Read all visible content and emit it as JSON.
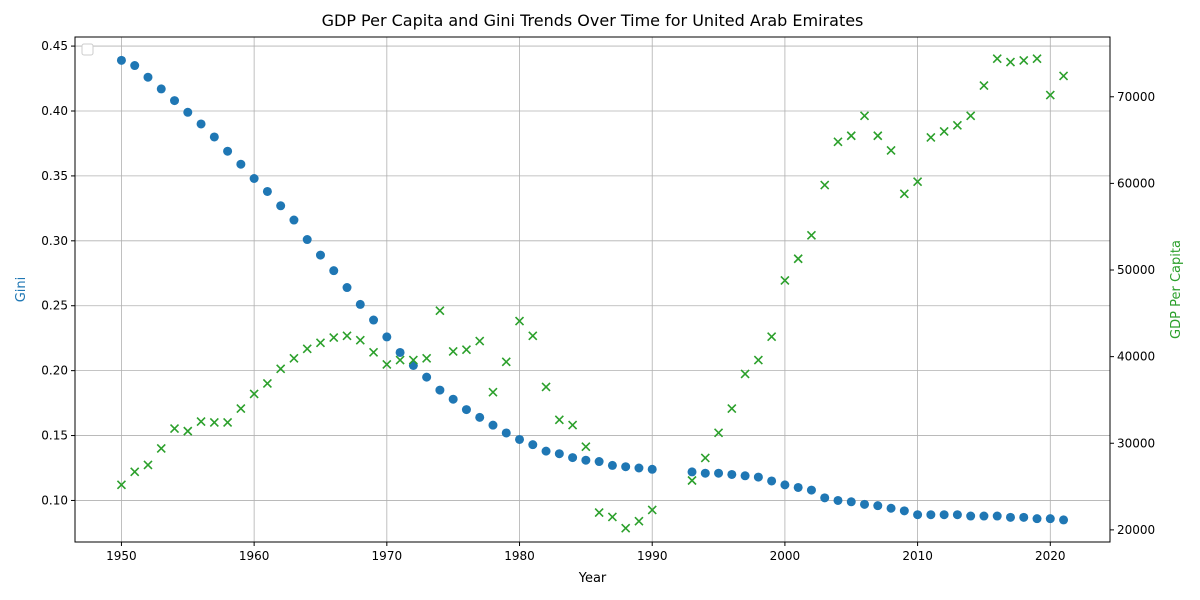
{
  "chart_data": {
    "type": "scatter",
    "title": "GDP Per Capita and Gini Trends Over Time for United Arab Emirates",
    "xlabel": "Year",
    "ylabel_left": "Gini",
    "ylabel_right": "GDP Per Capita",
    "xlim": [
      1946.5,
      2024.5
    ],
    "ylim_left": [
      0.068,
      0.457
    ],
    "ylim_right": [
      18600,
      76900
    ],
    "x_ticks": [
      1950,
      1960,
      1970,
      1980,
      1990,
      2000,
      2010,
      2020
    ],
    "y_left_ticks": [
      0.1,
      0.15,
      0.2,
      0.25,
      0.3,
      0.35,
      0.4,
      0.45
    ],
    "y_left_tick_labels": [
      "0.10",
      "0.15",
      "0.20",
      "0.25",
      "0.30",
      "0.35",
      "0.40",
      "0.45"
    ],
    "y_right_ticks": [
      20000,
      30000,
      40000,
      50000,
      60000,
      70000
    ],
    "grid": true,
    "legend": "top-left, empty",
    "colors": {
      "gini": "#1f77b4",
      "gdp": "#2ca02c",
      "left_label": "#1f77b4",
      "right_label": "#2ca02c"
    },
    "series": [
      {
        "marker": "circle",
        "axis": "left",
        "x": [
          1950,
          1951,
          1952,
          1953,
          1954,
          1955,
          1956,
          1957,
          1958,
          1959,
          1960,
          1961,
          1962,
          1963,
          1964,
          1965,
          1966,
          1967,
          1968,
          1969,
          1970,
          1971,
          1972,
          1973,
          1974,
          1975,
          1976,
          1977,
          1978,
          1979,
          1980,
          1981,
          1982,
          1983,
          1984,
          1985,
          1986,
          1987,
          1988,
          1989,
          1990,
          1993,
          1994,
          1995,
          1996,
          1997,
          1998,
          1999,
          2000,
          2001,
          2002,
          2003,
          2004,
          2005,
          2006,
          2007,
          2008,
          2009,
          2010,
          2011,
          2012,
          2013,
          2014,
          2015,
          2016,
          2017,
          2018,
          2019,
          2020,
          2021
        ],
        "values": [
          0.439,
          0.435,
          0.426,
          0.417,
          0.408,
          0.399,
          0.39,
          0.38,
          0.369,
          0.359,
          0.348,
          0.338,
          0.327,
          0.316,
          0.301,
          0.289,
          0.277,
          0.264,
          0.251,
          0.239,
          0.226,
          0.214,
          0.204,
          0.195,
          0.185,
          0.178,
          0.17,
          0.164,
          0.158,
          0.152,
          0.147,
          0.143,
          0.138,
          0.136,
          0.133,
          0.131,
          0.13,
          0.127,
          0.126,
          0.125,
          0.124,
          0.122,
          0.121,
          0.121,
          0.12,
          0.119,
          0.118,
          0.115,
          0.112,
          0.11,
          0.108,
          0.102,
          0.1,
          0.099,
          0.097,
          0.096,
          0.094,
          0.092,
          0.089,
          0.089,
          0.089,
          0.089,
          0.088,
          0.088,
          0.088,
          0.087,
          0.087,
          0.086,
          0.086,
          0.085
        ]
      },
      {
        "marker": "x",
        "axis": "right",
        "x": [
          1950,
          1951,
          1952,
          1953,
          1954,
          1955,
          1956,
          1957,
          1958,
          1959,
          1960,
          1961,
          1962,
          1963,
          1964,
          1965,
          1966,
          1967,
          1968,
          1969,
          1970,
          1971,
          1972,
          1973,
          1974,
          1975,
          1976,
          1977,
          1978,
          1979,
          1980,
          1981,
          1982,
          1983,
          1984,
          1985,
          1986,
          1987,
          1988,
          1989,
          1990,
          1993,
          1994,
          1995,
          1996,
          1997,
          1998,
          1999,
          2000,
          2001,
          2002,
          2003,
          2004,
          2005,
          2006,
          2007,
          2008,
          2009,
          2010,
          2011,
          2012,
          2013,
          2014,
          2015,
          2016,
          2017,
          2018,
          2019,
          2020,
          2021
        ],
        "values": [
          25200,
          26700,
          27500,
          29400,
          31700,
          31400,
          32500,
          32400,
          32400,
          34000,
          35700,
          36900,
          38600,
          39800,
          40900,
          41600,
          42200,
          42400,
          41900,
          40500,
          39100,
          39600,
          39600,
          39800,
          45300,
          40600,
          40800,
          41800,
          35900,
          39400,
          44100,
          42400,
          36500,
          32700,
          32100,
          29600,
          22000,
          21500,
          20200,
          21000,
          22300,
          25700,
          28300,
          31200,
          34000,
          38000,
          39600,
          42300,
          48800,
          51300,
          54000,
          59800,
          64800,
          65500,
          67800,
          65500,
          63800,
          58800,
          60200,
          65300,
          66000,
          66700,
          67800,
          71300,
          74400,
          74000,
          74200,
          74400,
          70200,
          72400
        ]
      }
    ]
  }
}
